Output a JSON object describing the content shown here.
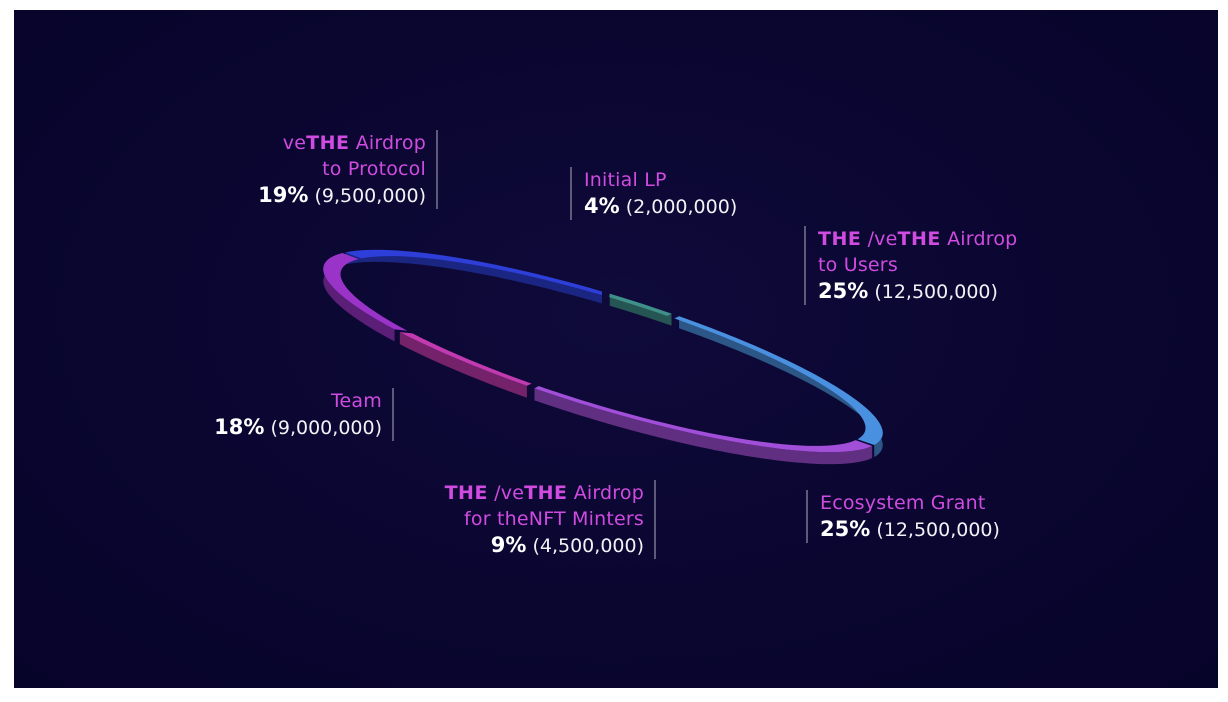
{
  "colors": {
    "background": "#0a0630",
    "label": "#d04be0",
    "value": "#ffffff"
  },
  "chart_data": {
    "type": "pie",
    "slices": [
      {
        "label": "Initial LP",
        "percent": 4,
        "amount": "(2,000,000)",
        "color": "#3f8f8a"
      },
      {
        "label": "THE/veTHE Airdrop to Users",
        "percent": 25,
        "amount": "(12,500,000)",
        "color": "#4a90e0"
      },
      {
        "label": "Ecosystem Grant",
        "percent": 25,
        "amount": "(12,500,000)",
        "color": "#a14ed8"
      },
      {
        "label": "THE/veTHE Airdrop for theNFT Minters",
        "percent": 9,
        "amount": "(4,500,000)",
        "color": "#c23ab0"
      },
      {
        "label": "Team",
        "percent": 18,
        "amount": "(9,000,000)",
        "color": "#9a33c8"
      },
      {
        "label": "veTHE Airdrop to Protocol",
        "percent": 19,
        "amount": "(9,500,000)",
        "color": "#2d3fd8"
      }
    ]
  },
  "labels": {
    "protocol": {
      "pre": "ve",
      "ticker": "THE",
      "post": " Airdrop",
      "line2": "to Protocol",
      "pct": "19%",
      "amount": "(9,500,000)"
    },
    "initial_lp": {
      "line1": "Initial LP",
      "pct": "4%",
      "amount": "(2,000,000)"
    },
    "users": {
      "ticker1": "THE",
      "mid": " /ve",
      "ticker2": "THE",
      "post": " Airdrop",
      "line2": "to Users",
      "pct": "25%",
      "amount": "(12,500,000)"
    },
    "team": {
      "line1": "Team",
      "pct": "18%",
      "amount": "(9,000,000)"
    },
    "minters": {
      "ticker1": "THE",
      "mid": " /ve",
      "ticker2": "THE",
      "post": " Airdrop",
      "line2": "for theNFT Minters",
      "pct": "9%",
      "amount": "(4,500,000)"
    },
    "ecosystem": {
      "line1": "Ecosystem Grant",
      "pct": "25%",
      "amount": "(12,500,000)"
    }
  }
}
